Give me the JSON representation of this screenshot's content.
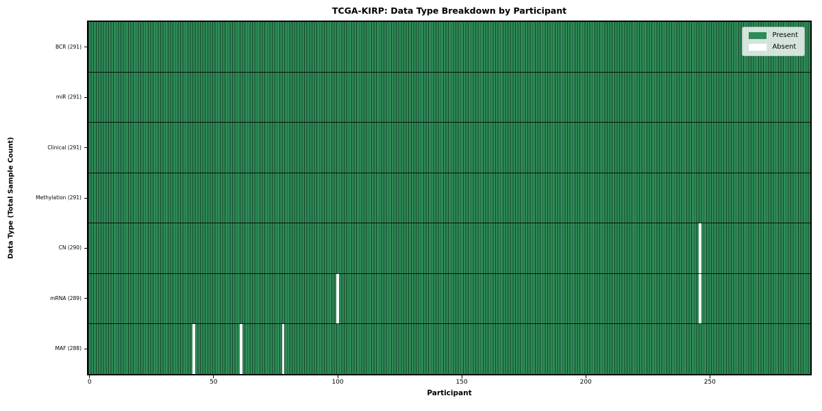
{
  "chart_data": {
    "type": "heatmap",
    "title": "TCGA-KIRP: Data Type Breakdown by Participant",
    "xlabel": "Participant",
    "ylabel": "Data Type (Total Sample Count)",
    "n_participants": 291,
    "x_ticks": [
      0,
      50,
      100,
      150,
      200,
      250
    ],
    "categories": [
      "BCR (291)",
      "miR (291)",
      "Clinical (291)",
      "Methylation (291)",
      "CN (290)",
      "mRNA (289)",
      "MAF (288)"
    ],
    "rows": [
      {
        "label": "BCR (291)",
        "data_type": "BCR",
        "present_count": 291,
        "absent_participants": []
      },
      {
        "label": "miR (291)",
        "data_type": "miR",
        "present_count": 291,
        "absent_participants": []
      },
      {
        "label": "Clinical (291)",
        "data_type": "Clinical",
        "present_count": 291,
        "absent_participants": []
      },
      {
        "label": "Methylation (291)",
        "data_type": "Methylation",
        "present_count": 291,
        "absent_participants": []
      },
      {
        "label": "CN (290)",
        "data_type": "CN",
        "present_count": 290,
        "absent_participants": [
          246
        ]
      },
      {
        "label": "mRNA (289)",
        "data_type": "mRNA",
        "present_count": 289,
        "absent_participants": [
          100,
          246
        ]
      },
      {
        "label": "MAF (288)",
        "data_type": "MAF",
        "present_count": 288,
        "absent_participants": [
          42,
          61,
          78
        ]
      }
    ],
    "legend": [
      {
        "label": "Present",
        "color": "#2e8b57"
      },
      {
        "label": "Absent",
        "color": "#ffffff"
      }
    ],
    "colors": {
      "present": "#2e8b57",
      "absent": "#ffffff",
      "cell_edge": "rgba(0,0,0,0.5)",
      "row_separator": "rgba(0,0,0,0.85)",
      "spine": "#000000",
      "background": "#ffffff"
    },
    "legend_position": "upper right",
    "grid": false
  }
}
